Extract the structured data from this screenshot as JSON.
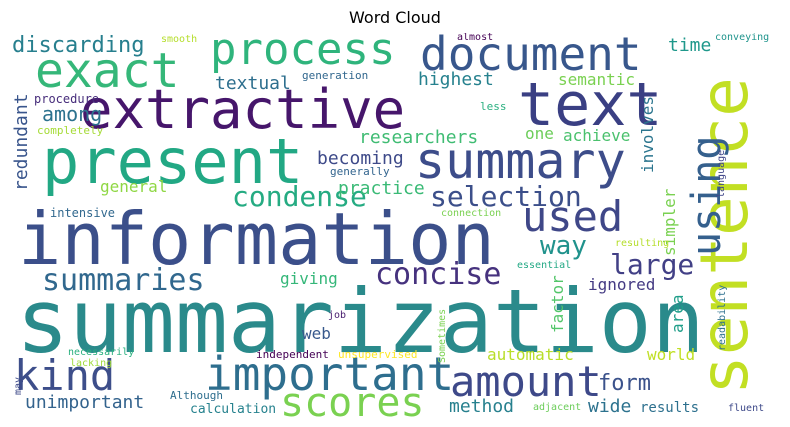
{
  "title": "Word Cloud",
  "words": [
    {
      "text": "summarization",
      "color": "#2a8a8b"
    },
    {
      "text": "information",
      "color": "#3b4f8a"
    },
    {
      "text": "sentence",
      "color": "#c2df23"
    },
    {
      "text": "extractive",
      "color": "#46166b"
    },
    {
      "text": "text",
      "color": "#3a3f83"
    },
    {
      "text": "present",
      "color": "#22a884"
    },
    {
      "text": "summary",
      "color": "#3d4d8a"
    },
    {
      "text": "document",
      "color": "#38578c"
    },
    {
      "text": "process",
      "color": "#2fb47c"
    },
    {
      "text": "exact",
      "color": "#35b779"
    },
    {
      "text": "important",
      "color": "#2e6e8e"
    },
    {
      "text": "kind",
      "color": "#3d4e8a"
    },
    {
      "text": "amount",
      "color": "#3e4989"
    },
    {
      "text": "scores",
      "color": "#7ad151"
    },
    {
      "text": "used",
      "color": "#3f4788"
    },
    {
      "text": "using",
      "color": "#35608d"
    },
    {
      "text": "summaries",
      "color": "#31688e"
    },
    {
      "text": "concise",
      "color": "#46327e"
    },
    {
      "text": "condense",
      "color": "#25ab82"
    },
    {
      "text": "selection",
      "color": "#3c4f8a"
    },
    {
      "text": "large",
      "color": "#424086"
    },
    {
      "text": "way",
      "color": "#20928c"
    },
    {
      "text": "discarding",
      "color": "#277f8e"
    },
    {
      "text": "textual",
      "color": "#2e6f8e"
    },
    {
      "text": "among",
      "color": "#2c728e"
    },
    {
      "text": "researchers",
      "color": "#3fbc73"
    },
    {
      "text": "becoming",
      "color": "#3e4a89"
    },
    {
      "text": "practice",
      "color": "#3aba76"
    },
    {
      "text": "general",
      "color": "#8fd744"
    },
    {
      "text": "redundant",
      "color": "#39558c"
    },
    {
      "text": "procedure",
      "color": "#472d7b"
    },
    {
      "text": "completely",
      "color": "#a5db36"
    },
    {
      "text": "time",
      "color": "#1f988b"
    },
    {
      "text": "highest",
      "color": "#26818e"
    },
    {
      "text": "semantic",
      "color": "#7ad151"
    },
    {
      "text": "one",
      "color": "#6ccd5a"
    },
    {
      "text": "achieve",
      "color": "#4ac16d"
    },
    {
      "text": "involves",
      "color": "#2b758e"
    },
    {
      "text": "generation",
      "color": "#31678e"
    },
    {
      "text": "less",
      "color": "#29af7f"
    },
    {
      "text": "smooth",
      "color": "#b5de2b"
    },
    {
      "text": "almost",
      "color": "#440154"
    },
    {
      "text": "conveying",
      "color": "#1f948c"
    },
    {
      "text": "generally",
      "color": "#32648e"
    },
    {
      "text": "intensive",
      "color": "#31688e"
    },
    {
      "text": "giving",
      "color": "#35b779"
    },
    {
      "text": "ignored",
      "color": "#443a83"
    },
    {
      "text": "simpler",
      "color": "#7ad151"
    },
    {
      "text": "factor",
      "color": "#52c569"
    },
    {
      "text": "area",
      "color": "#1f9e89"
    },
    {
      "text": "web",
      "color": "#38598c"
    },
    {
      "text": "automatic",
      "color": "#b8de29"
    },
    {
      "text": "world",
      "color": "#c0df25"
    },
    {
      "text": "form",
      "color": "#3b528b"
    },
    {
      "text": "unimportant",
      "color": "#33638d"
    },
    {
      "text": "method",
      "color": "#27808e"
    },
    {
      "text": "wide",
      "color": "#2c728e"
    },
    {
      "text": "results",
      "color": "#2d708e"
    },
    {
      "text": "calculation",
      "color": "#26828e"
    },
    {
      "text": "Although",
      "color": "#2e6e8e"
    },
    {
      "text": "independent",
      "color": "#440154"
    },
    {
      "text": "unsupervised",
      "color": "#fde725"
    },
    {
      "text": "necessarily",
      "color": "#2ab07f"
    },
    {
      "text": "lacking",
      "color": "#9fda3a"
    },
    {
      "text": "Sometimes",
      "color": "#7ad151"
    },
    {
      "text": "job",
      "color": "#481c6e"
    },
    {
      "text": "may",
      "color": "#3e4a89"
    },
    {
      "text": "adjacent",
      "color": "#6ccd5a"
    },
    {
      "text": "fluent",
      "color": "#3e4989"
    },
    {
      "text": "readability",
      "color": "#2d708e"
    },
    {
      "text": "language",
      "color": "#404688"
    },
    {
      "text": "connection",
      "color": "#7ad151"
    },
    {
      "text": "resulting",
      "color": "#b5de2b"
    },
    {
      "text": "essential",
      "color": "#22a884"
    }
  ]
}
